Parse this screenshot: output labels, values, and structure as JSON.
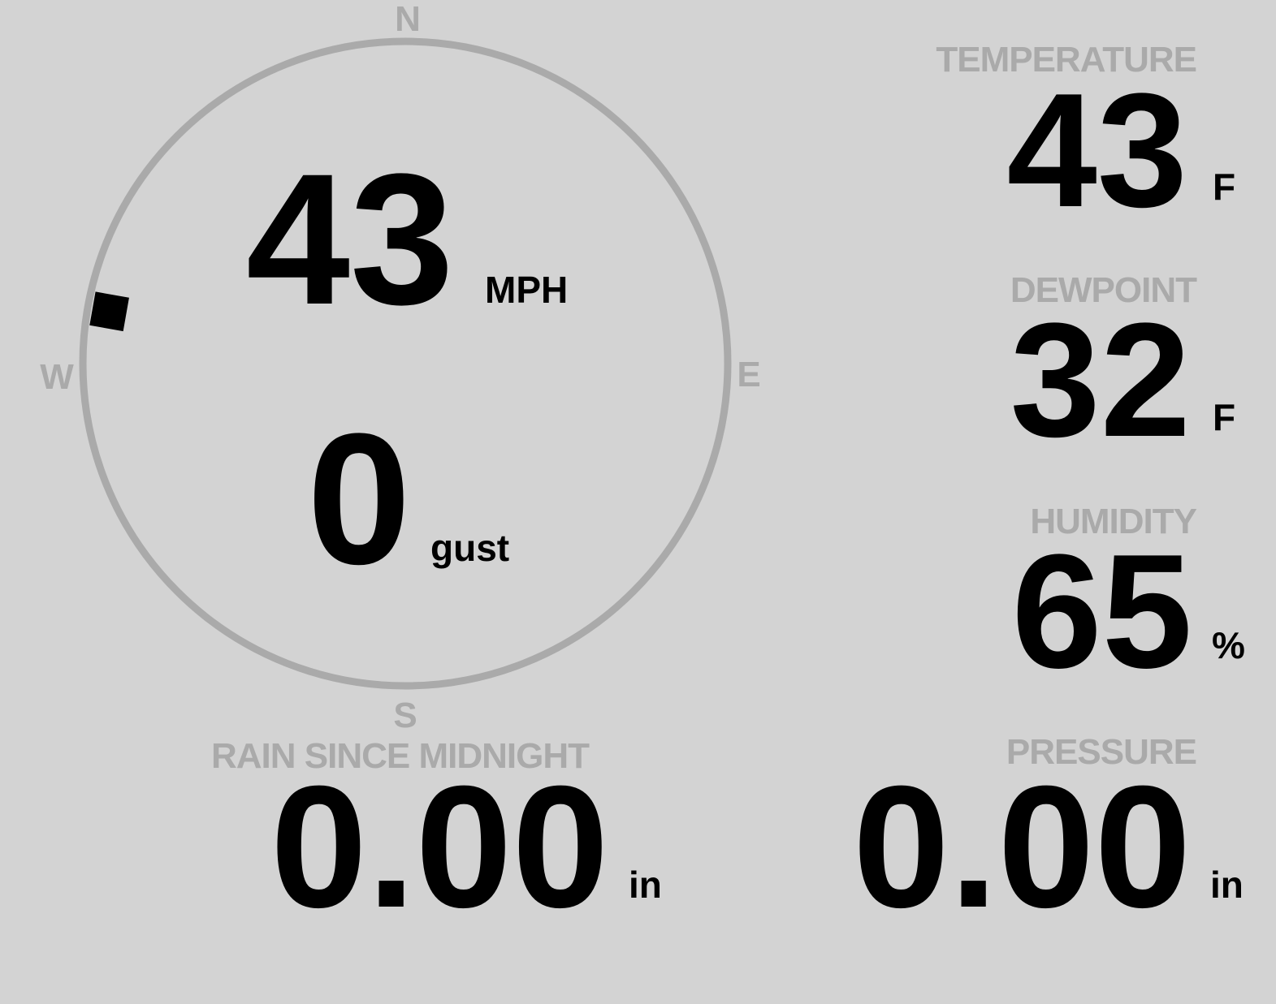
{
  "compass": {
    "north": "N",
    "south": "S",
    "east": "E",
    "west": "W",
    "wind_direction_deg": 280,
    "ring_color": "#aaaaaa",
    "marker_color": "#000000"
  },
  "wind": {
    "speed": "43",
    "speed_unit": "MPH",
    "gust": "0",
    "gust_label": "gust"
  },
  "temperature": {
    "label": "TEMPERATURE",
    "value": "43",
    "unit": "F"
  },
  "dewpoint": {
    "label": "DEWPOINT",
    "value": "32",
    "unit": "F"
  },
  "humidity": {
    "label": "HUMIDITY",
    "value": "65",
    "unit": "%"
  },
  "rain": {
    "label": "RAIN SINCE MIDNIGHT",
    "value": "0.00",
    "unit": "in"
  },
  "pressure": {
    "label": "PRESSURE",
    "value": "0.00",
    "unit": "in"
  },
  "colors": {
    "background": "#d3d3d3",
    "label": "#aaaaaa",
    "value": "#000000"
  }
}
